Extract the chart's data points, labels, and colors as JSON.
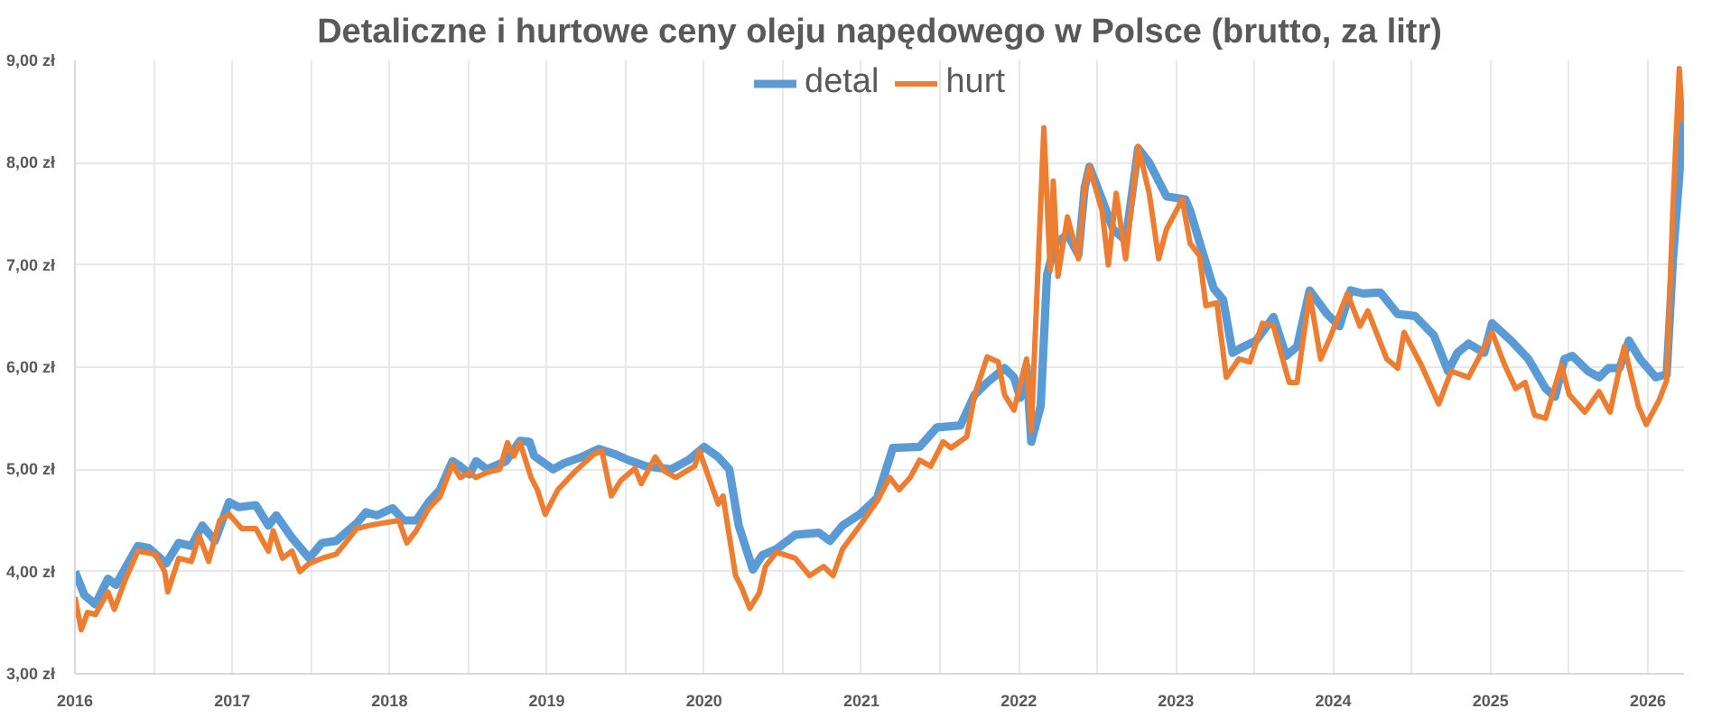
{
  "chart_data": {
    "type": "line",
    "title": "Detaliczne i hurtowe ceny oleju napędowego w Polsce (brutto, za litr)",
    "xlim": [
      2016,
      2026.23
    ],
    "xticks": [
      2016,
      {
        "value": 2016.5,
        "label": null
      },
      2017,
      {
        "value": 2017.5,
        "label": null
      },
      2018,
      {
        "value": 2018.5,
        "label": null
      },
      2019,
      {
        "value": 2019.5,
        "label": null
      },
      2020,
      {
        "value": 2020.5,
        "label": null
      },
      2021,
      {
        "value": 2021.5,
        "label": null
      },
      2022,
      {
        "value": 2022.5,
        "label": null
      },
      2023,
      {
        "value": 2023.5,
        "label": null
      },
      2024,
      {
        "value": 2024.5,
        "label": null
      },
      2025,
      {
        "value": 2025.5,
        "label": null
      },
      2026
    ],
    "ylim": [
      3,
      9
    ],
    "yticks": [
      {
        "value": 3,
        "label": "3,00 zł"
      },
      {
        "value": 4,
        "label": "4,00 zł"
      },
      {
        "value": 5,
        "label": "5,00 zł"
      },
      {
        "value": 6,
        "label": "6,00 zł"
      },
      {
        "value": 7,
        "label": "7,00 zł"
      },
      {
        "value": 8,
        "label": "8,00 zł"
      },
      {
        "value": 9,
        "label": "9,00 zł"
      }
    ],
    "grid": true,
    "legend": "top",
    "line_style": "solid",
    "series": [
      {
        "name": "detal",
        "color": "#5b9bd5",
        "x": [
          2016.0,
          2016.06,
          2016.13,
          2016.21,
          2016.26,
          2016.4,
          2016.47,
          2016.58,
          2016.66,
          2016.74,
          2016.81,
          2016.89,
          2016.98,
          2017.04,
          2017.15,
          2017.23,
          2017.28,
          2017.38,
          2017.49,
          2017.57,
          2017.66,
          2017.72,
          2017.79,
          2017.85,
          2017.92,
          2018.02,
          2018.09,
          2018.17,
          2018.25,
          2018.32,
          2018.4,
          2018.45,
          2018.51,
          2018.55,
          2018.62,
          2018.74,
          2018.83,
          2018.89,
          2018.92,
          2019.04,
          2019.11,
          2019.22,
          2019.33,
          2019.43,
          2019.52,
          2019.63,
          2019.79,
          2019.9,
          2020.0,
          2020.09,
          2020.16,
          2020.22,
          2020.31,
          2020.37,
          2020.46,
          2020.58,
          2020.73,
          2020.8,
          2020.88,
          2020.99,
          2021.1,
          2021.2,
          2021.37,
          2021.48,
          2021.63,
          2021.72,
          2021.8,
          2021.91,
          2021.97,
          2022.01,
          2022.05,
          2022.08,
          2022.14,
          2022.18,
          2022.23,
          2022.31,
          2022.38,
          2022.42,
          2022.45,
          2022.53,
          2022.6,
          2022.68,
          2022.76,
          2022.83,
          2022.94,
          2023.06,
          2023.09,
          2023.17,
          2023.24,
          2023.3,
          2023.36,
          2023.43,
          2023.51,
          2023.62,
          2023.7,
          2023.77,
          2023.85,
          2023.96,
          2024.04,
          2024.11,
          2024.19,
          2024.3,
          2024.41,
          2024.52,
          2024.64,
          2024.73,
          2024.79,
          2024.86,
          2024.96,
          2025.01,
          2025.13,
          2025.24,
          2025.35,
          2025.41,
          2025.47,
          2025.52,
          2025.62,
          2025.69,
          2025.75,
          2025.82,
          2025.88,
          2025.95,
          2026.05,
          2026.12,
          2026.16,
          2026.2,
          2026.22
        ],
        "values": [
          4.0,
          3.77,
          3.68,
          3.93,
          3.87,
          4.25,
          4.23,
          4.08,
          4.28,
          4.25,
          4.45,
          4.3,
          4.68,
          4.63,
          4.65,
          4.45,
          4.55,
          4.33,
          4.13,
          4.28,
          4.3,
          4.38,
          4.47,
          4.58,
          4.55,
          4.62,
          4.5,
          4.5,
          4.68,
          4.8,
          5.08,
          5.03,
          4.95,
          5.08,
          5.0,
          5.08,
          5.28,
          5.27,
          5.13,
          5.0,
          5.06,
          5.12,
          5.2,
          5.15,
          5.09,
          5.03,
          5.0,
          5.09,
          5.22,
          5.12,
          5.0,
          4.45,
          4.02,
          4.16,
          4.22,
          4.36,
          4.38,
          4.3,
          4.45,
          4.56,
          4.72,
          5.21,
          5.22,
          5.41,
          5.43,
          5.73,
          5.85,
          5.99,
          5.9,
          5.7,
          6.01,
          5.27,
          5.62,
          6.9,
          7.2,
          7.3,
          7.1,
          7.76,
          7.96,
          7.64,
          7.35,
          7.24,
          8.14,
          8.0,
          7.67,
          7.64,
          7.53,
          7.12,
          6.77,
          6.66,
          6.14,
          6.2,
          6.26,
          6.49,
          6.11,
          6.2,
          6.75,
          6.52,
          6.4,
          6.75,
          6.72,
          6.73,
          6.52,
          6.5,
          6.31,
          5.96,
          6.14,
          6.23,
          6.14,
          6.43,
          6.26,
          6.08,
          5.79,
          5.71,
          6.08,
          6.11,
          5.96,
          5.9,
          5.99,
          5.99,
          6.26,
          6.08,
          5.9,
          5.93,
          7.06,
          7.87,
          8.42
        ]
      },
      {
        "name": "hurt",
        "color": "#ed7d31",
        "x": [
          2016.0,
          2016.04,
          2016.08,
          2016.13,
          2016.21,
          2016.25,
          2016.32,
          2016.4,
          2016.51,
          2016.57,
          2016.59,
          2016.66,
          2016.74,
          2016.79,
          2016.85,
          2016.92,
          2016.98,
          2017.06,
          2017.15,
          2017.23,
          2017.26,
          2017.32,
          2017.38,
          2017.43,
          2017.49,
          2017.57,
          2017.66,
          2017.72,
          2017.79,
          2017.87,
          2017.94,
          2018.06,
          2018.11,
          2018.17,
          2018.25,
          2018.32,
          2018.4,
          2018.45,
          2018.51,
          2018.55,
          2018.62,
          2018.7,
          2018.75,
          2018.79,
          2018.83,
          2018.9,
          2018.94,
          2018.99,
          2019.07,
          2019.18,
          2019.3,
          2019.35,
          2019.41,
          2019.47,
          2019.56,
          2019.6,
          2019.69,
          2019.75,
          2019.82,
          2019.94,
          2019.97,
          2020.03,
          2020.09,
          2020.12,
          2020.2,
          2020.24,
          2020.29,
          2020.35,
          2020.39,
          2020.46,
          2020.58,
          2020.67,
          2020.76,
          2020.82,
          2020.88,
          2020.99,
          2021.1,
          2021.18,
          2021.24,
          2021.31,
          2021.37,
          2021.44,
          2021.52,
          2021.57,
          2021.67,
          2021.72,
          2021.8,
          2021.87,
          2021.91,
          2021.97,
          2022.05,
          2022.08,
          2022.16,
          2022.2,
          2022.22,
          2022.25,
          2022.31,
          2022.38,
          2022.42,
          2022.45,
          2022.53,
          2022.57,
          2022.62,
          2022.68,
          2022.76,
          2022.83,
          2022.89,
          2022.94,
          2023.04,
          2023.09,
          2023.15,
          2023.19,
          2023.26,
          2023.32,
          2023.4,
          2023.47,
          2023.55,
          2023.62,
          2023.72,
          2023.77,
          2023.85,
          2023.92,
          2023.98,
          2024.09,
          2024.17,
          2024.22,
          2024.34,
          2024.41,
          2024.45,
          2024.56,
          2024.67,
          2024.75,
          2024.86,
          2025.01,
          2025.09,
          2025.16,
          2025.22,
          2025.28,
          2025.35,
          2025.45,
          2025.5,
          2025.6,
          2025.69,
          2025.76,
          2025.85,
          2025.94,
          2025.99,
          2026.07,
          2026.12,
          2026.16,
          2026.2,
          2026.22
        ],
        "values": [
          3.75,
          3.43,
          3.6,
          3.58,
          3.8,
          3.63,
          3.92,
          4.2,
          4.17,
          4.0,
          3.8,
          4.13,
          4.1,
          4.35,
          4.1,
          4.5,
          4.56,
          4.42,
          4.42,
          4.2,
          4.4,
          4.13,
          4.2,
          4.0,
          4.08,
          4.13,
          4.17,
          4.28,
          4.42,
          4.45,
          4.47,
          4.5,
          4.28,
          4.4,
          4.62,
          4.73,
          5.05,
          4.92,
          4.97,
          4.92,
          4.97,
          5.0,
          5.26,
          5.13,
          5.26,
          4.92,
          4.8,
          4.56,
          4.8,
          4.98,
          5.15,
          5.18,
          4.74,
          4.89,
          5.01,
          4.86,
          5.12,
          4.98,
          4.92,
          5.03,
          5.18,
          4.92,
          4.66,
          4.74,
          3.96,
          3.84,
          3.64,
          3.79,
          4.05,
          4.19,
          4.13,
          3.96,
          4.05,
          3.96,
          4.22,
          4.45,
          4.69,
          4.92,
          4.8,
          4.92,
          5.09,
          5.03,
          5.27,
          5.21,
          5.32,
          5.73,
          6.1,
          6.05,
          5.73,
          5.58,
          6.08,
          5.38,
          8.34,
          6.95,
          7.82,
          6.89,
          7.47,
          7.06,
          7.76,
          7.96,
          7.53,
          7.0,
          7.7,
          7.06,
          8.16,
          7.7,
          7.06,
          7.35,
          7.64,
          7.21,
          7.09,
          6.6,
          6.63,
          5.9,
          6.08,
          6.05,
          6.43,
          6.4,
          5.85,
          5.85,
          6.72,
          6.08,
          6.29,
          6.72,
          6.4,
          6.55,
          6.08,
          5.99,
          6.34,
          6.02,
          5.64,
          5.96,
          5.9,
          6.34,
          6.02,
          5.79,
          5.85,
          5.53,
          5.5,
          6.02,
          5.73,
          5.56,
          5.76,
          5.56,
          6.2,
          5.62,
          5.44,
          5.67,
          5.87,
          7.58,
          8.92,
          8.4
        ]
      }
    ]
  }
}
